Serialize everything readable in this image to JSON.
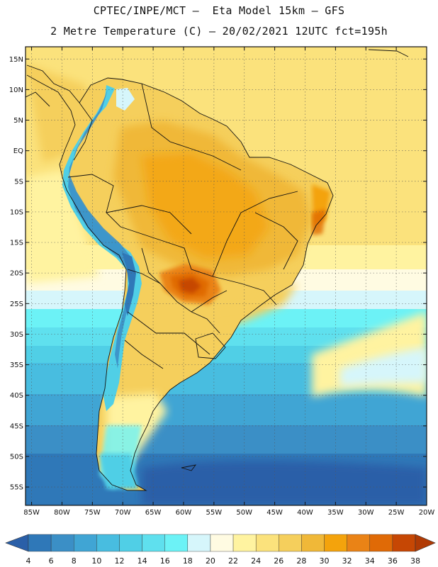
{
  "title_line1": "CPTEC/INPE/MCT –  Eta Model 15km – GFS",
  "title_line2": "2 Metre Temperature (C) – 20/02/2021 12UTC fct=195h",
  "lat_labels": [
    "15N",
    "10N",
    "5N",
    "EQ",
    "5S",
    "10S",
    "15S",
    "20S",
    "25S",
    "30S",
    "35S",
    "40S",
    "45S",
    "50S",
    "55S"
  ],
  "lon_labels": [
    "85W",
    "80W",
    "75W",
    "70W",
    "65W",
    "60W",
    "55W",
    "50W",
    "45W",
    "40W",
    "35W",
    "30W",
    "25W",
    "20W"
  ],
  "lat_values": [
    15,
    10,
    5,
    0,
    -5,
    -10,
    -15,
    -20,
    -25,
    -30,
    -35,
    -40,
    -45,
    -50,
    -55
  ],
  "lon_values": [
    -85,
    -80,
    -75,
    -70,
    -65,
    -60,
    -55,
    -50,
    -45,
    -40,
    -35,
    -30,
    -25,
    -20
  ],
  "lat_range": [
    -58,
    17
  ],
  "lon_range": [
    -86,
    -20
  ],
  "colorbar": {
    "labels": [
      "4",
      "6",
      "8",
      "10",
      "12",
      "14",
      "16",
      "18",
      "20",
      "22",
      "24",
      "26",
      "28",
      "30",
      "32",
      "34",
      "36",
      "38"
    ],
    "colors": [
      "#2a5fa8",
      "#2f78b8",
      "#3b8fc6",
      "#40a5d4",
      "#48bde0",
      "#50cfe6",
      "#5fe0ee",
      "#6cf2f6",
      "#d6f6fb",
      "#fffbe2",
      "#fff3a0",
      "#fbe27c",
      "#f5cf5c",
      "#f0b838",
      "#f4a30c",
      "#ea8316",
      "#e06a06",
      "#c64704",
      "#b03a04"
    ]
  }
}
